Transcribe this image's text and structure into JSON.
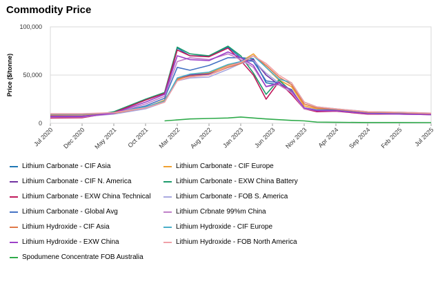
{
  "title": "Commodity Price",
  "chart_data": {
    "type": "line",
    "title": "Commodity Price",
    "xlabel": "",
    "ylabel": "Price ($/tonne)",
    "ylim": [
      0,
      100000
    ],
    "yticks": [
      0,
      50000,
      100000
    ],
    "ytick_labels": [
      "0",
      "50,000",
      "100,000"
    ],
    "xlim": [
      "2020-07",
      "2025-07"
    ],
    "xtick_labels": [
      "Jul 2020",
      "Dec 2020",
      "May 2021",
      "Oct 2021",
      "Mar 2022",
      "Aug 2022",
      "Jan 2023",
      "Jun 2023",
      "Nov 2023",
      "Apr 2024",
      "Sep 2024",
      "Feb 2025",
      "Jul 2025"
    ],
    "xticks": [
      "2020-07",
      "2020-12",
      "2021-05",
      "2021-10",
      "2022-03",
      "2022-08",
      "2023-01",
      "2023-06",
      "2023-11",
      "2024-04",
      "2024-09",
      "2025-02",
      "2025-07"
    ],
    "legend_position": "bottom",
    "grid": "horizontal",
    "series": [
      {
        "name": "Lithium Carbonate - CIF Asia",
        "color": "#1f77b4",
        "x": [
          "2020-07",
          "2020-12",
          "2021-05",
          "2021-10",
          "2022-01",
          "2022-03",
          "2022-05",
          "2022-08",
          "2022-11",
          "2023-01",
          "2023-03",
          "2023-05",
          "2023-07",
          "2023-09",
          "2023-11",
          "2024-01",
          "2024-04",
          "2024-09",
          "2025-02",
          "2025-07"
        ],
        "values": [
          7000,
          7200,
          10000,
          16000,
          24000,
          78000,
          70000,
          70000,
          79000,
          68000,
          67000,
          42000,
          40000,
          35000,
          15000,
          13000,
          14000,
          11000,
          10000,
          9000
        ]
      },
      {
        "name": "Lithium Carbonate - CIF Europe",
        "color": "#f0a030",
        "x": [
          "2020-07",
          "2020-12",
          "2021-05",
          "2021-10",
          "2022-01",
          "2022-03",
          "2022-05",
          "2022-08",
          "2022-11",
          "2023-01",
          "2023-03",
          "2023-05",
          "2023-07",
          "2023-09",
          "2023-11",
          "2024-01",
          "2024-04",
          "2024-09",
          "2025-02",
          "2025-07"
        ],
        "values": [
          8500,
          8800,
          10500,
          16500,
          24000,
          45000,
          50000,
          52000,
          60000,
          64000,
          72000,
          58000,
          45000,
          38000,
          18000,
          15000,
          14500,
          11500,
          11000,
          10000
        ]
      },
      {
        "name": "Lithium Carbonate - CIF N. America",
        "color": "#7030a0",
        "x": [
          "2020-07",
          "2020-12",
          "2021-05",
          "2021-10",
          "2022-01",
          "2022-03",
          "2022-05",
          "2022-08",
          "2022-11",
          "2023-01",
          "2023-03",
          "2023-05",
          "2023-07",
          "2023-09",
          "2023-11",
          "2024-01",
          "2024-04",
          "2024-09",
          "2025-02",
          "2025-07"
        ],
        "values": [
          7500,
          7500,
          10000,
          16000,
          23000,
          46000,
          50000,
          51000,
          58000,
          64000,
          66000,
          50000,
          40000,
          32000,
          16000,
          14000,
          14000,
          11000,
          10500,
          9500
        ]
      },
      {
        "name": "Lithium Carbonate - EXW China Battery",
        "color": "#1a9a6a",
        "x": [
          "2020-07",
          "2020-12",
          "2021-05",
          "2021-10",
          "2022-01",
          "2022-03",
          "2022-05",
          "2022-08",
          "2022-11",
          "2023-01",
          "2023-03",
          "2023-05",
          "2023-07",
          "2023-09",
          "2023-11",
          "2024-01",
          "2024-04",
          "2024-09",
          "2025-02",
          "2025-07"
        ],
        "values": [
          6000,
          6200,
          12000,
          25000,
          32000,
          79000,
          72000,
          70000,
          80000,
          70000,
          52000,
          30000,
          45000,
          33000,
          16000,
          13000,
          13000,
          10000,
          10000,
          9500
        ]
      },
      {
        "name": "Lithium Carbonate - EXW China Technical",
        "color": "#c0185a",
        "x": [
          "2020-07",
          "2020-12",
          "2021-05",
          "2021-10",
          "2022-01",
          "2022-03",
          "2022-05",
          "2022-08",
          "2022-11",
          "2023-01",
          "2023-03",
          "2023-05",
          "2023-07",
          "2023-09",
          "2023-11",
          "2024-01",
          "2024-04",
          "2024-09",
          "2025-02",
          "2025-07"
        ],
        "values": [
          5500,
          5800,
          11000,
          24000,
          31000,
          76000,
          70000,
          69000,
          78000,
          65000,
          50000,
          25000,
          43000,
          30000,
          15000,
          12000,
          12500,
          9500,
          9500,
          9000
        ]
      },
      {
        "name": "Lithium Carbonate - FOB S. America",
        "color": "#a8a8e0",
        "x": [
          "2020-07",
          "2020-12",
          "2021-05",
          "2021-10",
          "2022-01",
          "2022-03",
          "2022-05",
          "2022-08",
          "2022-11",
          "2023-01",
          "2023-03",
          "2023-05",
          "2023-07",
          "2023-09",
          "2023-11",
          "2024-01",
          "2024-04",
          "2024-09",
          "2025-02",
          "2025-07"
        ],
        "values": [
          6500,
          6800,
          9500,
          15000,
          22000,
          44000,
          47000,
          48000,
          56000,
          62000,
          65000,
          52000,
          42000,
          34000,
          16000,
          14000,
          13500,
          10500,
          10000,
          9000
        ]
      },
      {
        "name": "Lithium Carbonate - Global Avg",
        "color": "#4472c4",
        "x": [
          "2020-07",
          "2020-12",
          "2021-05",
          "2021-10",
          "2022-01",
          "2022-03",
          "2022-05",
          "2022-08",
          "2022-11",
          "2023-01",
          "2023-03",
          "2023-05",
          "2023-07",
          "2023-09",
          "2023-11",
          "2024-01",
          "2024-04",
          "2024-09",
          "2025-02",
          "2025-07"
        ],
        "values": [
          7000,
          7200,
          10500,
          18000,
          26000,
          58000,
          55000,
          60000,
          68000,
          68000,
          64000,
          44000,
          42000,
          34000,
          16000,
          13500,
          13500,
          10500,
          10000,
          9000
        ]
      },
      {
        "name": "Lithium Crbnate 99%m China",
        "color": "#c080c8",
        "x": [
          "2020-07",
          "2020-12",
          "2021-05",
          "2021-10",
          "2022-01",
          "2022-03",
          "2022-05",
          "2022-08",
          "2022-11",
          "2023-01",
          "2023-03",
          "2023-05",
          "2023-07",
          "2023-09",
          "2023-11",
          "2024-01",
          "2024-04",
          "2024-09",
          "2025-02",
          "2025-07"
        ],
        "values": [
          6500,
          6500,
          10000,
          20000,
          28000,
          64000,
          68000,
          66000,
          72000,
          66000,
          58000,
          38000,
          40000,
          32000,
          15000,
          13000,
          13000,
          10000,
          9500,
          9000
        ]
      },
      {
        "name": "Lithium Hydroxide - CIF Asia",
        "color": "#e07848",
        "x": [
          "2020-07",
          "2020-12",
          "2021-05",
          "2021-10",
          "2022-01",
          "2022-03",
          "2022-05",
          "2022-08",
          "2022-11",
          "2023-01",
          "2023-03",
          "2023-05",
          "2023-07",
          "2023-09",
          "2023-11",
          "2024-01",
          "2024-04",
          "2024-09",
          "2025-02",
          "2025-07"
        ],
        "values": [
          9000,
          9000,
          10500,
          16000,
          22000,
          46000,
          49000,
          50000,
          58000,
          62000,
          70000,
          60000,
          48000,
          40000,
          20000,
          16000,
          14500,
          11500,
          11000,
          10000
        ]
      },
      {
        "name": "Lithium Hydroxide - CIF Europe",
        "color": "#4aaec8",
        "x": [
          "2020-07",
          "2020-12",
          "2021-05",
          "2021-10",
          "2022-01",
          "2022-03",
          "2022-05",
          "2022-08",
          "2022-11",
          "2023-01",
          "2023-03",
          "2023-05",
          "2023-07",
          "2023-09",
          "2023-11",
          "2024-01",
          "2024-04",
          "2024-09",
          "2025-02",
          "2025-07"
        ],
        "values": [
          9500,
          9500,
          11000,
          17000,
          23000,
          47000,
          51000,
          53000,
          61000,
          64000,
          70000,
          58000,
          46000,
          42000,
          22000,
          17000,
          15000,
          12000,
          11500,
          10500
        ]
      },
      {
        "name": "Lithium Hydroxide - EXW China",
        "color": "#9c40c8",
        "x": [
          "2020-07",
          "2020-12",
          "2021-05",
          "2021-10",
          "2022-01",
          "2022-03",
          "2022-05",
          "2022-08",
          "2022-11",
          "2023-01",
          "2023-03",
          "2023-05",
          "2023-07",
          "2023-09",
          "2023-11",
          "2024-01",
          "2024-04",
          "2024-09",
          "2025-02",
          "2025-07"
        ],
        "values": [
          7000,
          7000,
          10500,
          22000,
          30000,
          70000,
          66000,
          65000,
          74000,
          68000,
          60000,
          38000,
          42000,
          34000,
          16000,
          13000,
          13000,
          10000,
          9500,
          9000
        ]
      },
      {
        "name": "Lithium Hydroxide - FOB North America",
        "color": "#f0a0a8",
        "x": [
          "2020-07",
          "2020-12",
          "2021-05",
          "2021-10",
          "2022-01",
          "2022-03",
          "2022-05",
          "2022-08",
          "2022-11",
          "2023-01",
          "2023-03",
          "2023-05",
          "2023-07",
          "2023-09",
          "2023-11",
          "2024-01",
          "2024-04",
          "2024-09",
          "2025-02",
          "2025-07"
        ],
        "values": [
          10000,
          10000,
          11000,
          16000,
          22000,
          44000,
          48000,
          50000,
          59000,
          63000,
          70000,
          62000,
          50000,
          42000,
          22000,
          17000,
          15000,
          12000,
          11500,
          10500
        ]
      },
      {
        "name": "Spodumene Concentrate FOB Australia",
        "color": "#2eaa4a",
        "x": [
          "2022-01",
          "2022-05",
          "2022-08",
          "2022-11",
          "2023-01",
          "2023-05",
          "2023-09",
          "2023-11",
          "2024-01",
          "2024-04",
          "2024-09",
          "2025-02",
          "2025-07"
        ],
        "values": [
          2500,
          4500,
          5000,
          5500,
          6500,
          4500,
          3000,
          2500,
          1200,
          1000,
          800,
          800,
          700
        ]
      }
    ]
  }
}
